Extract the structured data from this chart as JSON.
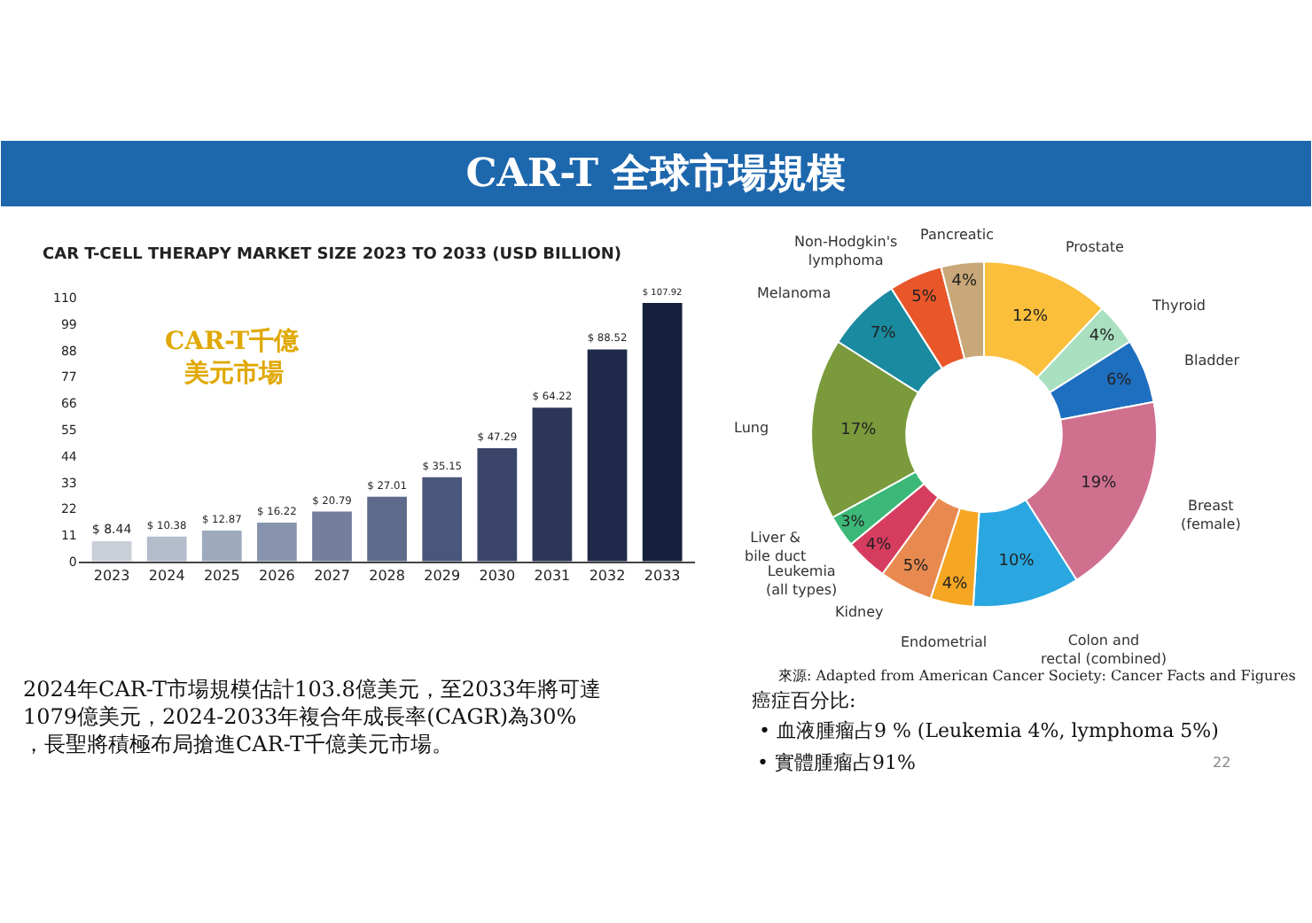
{
  "chart_data": [
    {
      "type": "bar",
      "title": "CAR T-CELL THERAPY MARKET SIZE 2023 TO 2033 (USD BILLION)",
      "categories": [
        "2023",
        "2024",
        "2025",
        "2026",
        "2027",
        "2028",
        "2029",
        "2030",
        "2031",
        "2032",
        "2033"
      ],
      "values": [
        8.44,
        10.38,
        12.87,
        16.22,
        20.79,
        27.01,
        35.15,
        47.29,
        64.22,
        88.52,
        107.92
      ],
      "value_labels": [
        "$ 8.44",
        "$ 10.38",
        "$ 12.87",
        "$ 16.22",
        "$ 20.79",
        "$ 27.01",
        "$ 35.15",
        "$ 47.29",
        "$ 64.22",
        "$ 88.52",
        "$ 107.92"
      ],
      "colors": [
        "#c9cfd9",
        "#b3bccb",
        "#9ea9bd",
        "#8894ad",
        "#737f9c",
        "#5f6b8b",
        "#4b577a",
        "#3a4569",
        "#2b3658",
        "#1f2a4a",
        "#16203d"
      ],
      "ylim": [
        0,
        110
      ],
      "yticks": [
        0,
        11,
        22,
        33,
        44,
        55,
        66,
        77,
        88,
        99,
        110
      ],
      "annotations": [
        "CAR-T 全球市場規模",
        "CAR-T千億",
        "美元市場",
        "2024年CAR-T市場規模估計103.8億美元，至2033年將可達1079億美元，2024-2033年複合年成長率(CAGR)為30%，長聖將積極布局搶進CAR-T千億美元市場。",
        "22"
      ]
    },
    {
      "type": "donut",
      "categories": [
        "Prostate",
        "Thyroid",
        "Bladder",
        "Breast\n(female)",
        "Colon and\nrectal (combined)",
        "Endometrial",
        "Kidney",
        "Leukemia\n(all types)",
        "Liver &\nbile duct",
        "Lung",
        "Melanoma",
        "Non-Hodgkin's\nlymphoma",
        "Pancreatic"
      ],
      "values": [
        12,
        4,
        6,
        19,
        10,
        4,
        5,
        4,
        3,
        17,
        7,
        5,
        4
      ],
      "value_labels": [
        "12%",
        "4%",
        "6%",
        "19%",
        "10%",
        "4%",
        "5%",
        "4%",
        "3%",
        "17%",
        "7%",
        "5%",
        "4%"
      ],
      "colors": [
        "#fbbf3c",
        "#a8e0c0",
        "#1f6fc0",
        "#d0708f",
        "#2aa7e0",
        "#f5a623",
        "#e88a50",
        "#d63c5e",
        "#3cb878",
        "#7a9a3c",
        "#1a8aa0",
        "#e8562a",
        "#c8a878"
      ],
      "annotations": [
        "來源: Adapted from American Cancer Society: Cancer Facts and Figures",
        "癌症百分比:",
        "• 血液腫瘤占9 % (Leukemia 4%, lymphoma 5%)",
        "• 實體腫瘤占91%"
      ]
    }
  ]
}
